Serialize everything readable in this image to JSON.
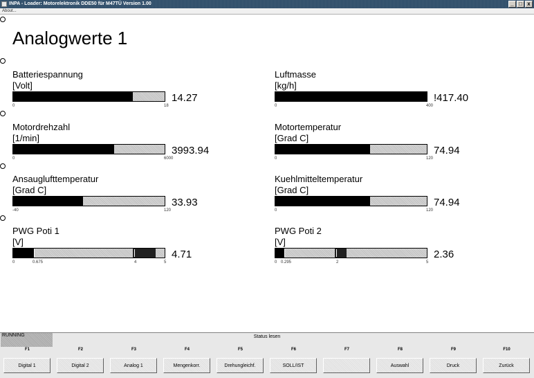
{
  "window": {
    "title": "INPA - Loader:  Motorelektronik DDE50 für M47TÜ Version 1.00",
    "menu": "About...",
    "buttons": {
      "minimize": "_",
      "maximize": "□",
      "close": "x"
    }
  },
  "page": {
    "title": "Analogwerte 1"
  },
  "gauges": [
    {
      "name": "Batteriespannung",
      "unit": "[Volt]",
      "value": "14.27",
      "min": "0",
      "max": "18",
      "fraction": 0.79
    },
    {
      "name": "Luftmasse",
      "unit": "[kg/h]",
      "value": "!417.40",
      "min": "0",
      "max": "400",
      "fraction": 1.0
    },
    {
      "name": "Motordrehzahl",
      "unit": "[1/min]",
      "value": "3993.94",
      "min": "0",
      "max": "6000",
      "fraction": 0.665
    },
    {
      "name": "Motortemperatur",
      "unit": "[Grad C]",
      "value": "74.94",
      "min": "0",
      "max": "120",
      "fraction": 0.625
    },
    {
      "name": "Ansauglufttemperatur",
      "unit": "[Grad C]",
      "value": "33.93",
      "min": "-40",
      "max": "120",
      "fraction": 0.46
    },
    {
      "name": "Kuehlmitteltemperatur",
      "unit": "[Grad C]",
      "value": "74.94",
      "min": "0",
      "max": "120",
      "fraction": 0.625
    },
    {
      "name": "PWG Poti 1",
      "unit": "[V]",
      "value": "4.71",
      "min": "0",
      "max": "5",
      "lower": "0.675",
      "upper": "4",
      "fraction": 0.942
    },
    {
      "name": "PWG Poti 2",
      "unit": "[V]",
      "value": "2.36",
      "min": "0",
      "max": "5",
      "lower": "0.295",
      "upper": "2",
      "fraction": 0.472
    }
  ],
  "status": {
    "running": "RUNNING",
    "text": "Status lesen"
  },
  "fkeys": [
    {
      "key": "F1",
      "label": "Digital 1"
    },
    {
      "key": "F2",
      "label": "Digital 2"
    },
    {
      "key": "F3",
      "label": "Analog 1"
    },
    {
      "key": "F4",
      "label": "Mengenkorr."
    },
    {
      "key": "F5",
      "label": "Drehungleichf."
    },
    {
      "key": "F6",
      "label": "SOLL/IST"
    },
    {
      "key": "F7",
      "label": ""
    },
    {
      "key": "F8",
      "label": "Auswahl"
    },
    {
      "key": "F9",
      "label": "Druck"
    },
    {
      "key": "F10",
      "label": "Zurück"
    }
  ]
}
